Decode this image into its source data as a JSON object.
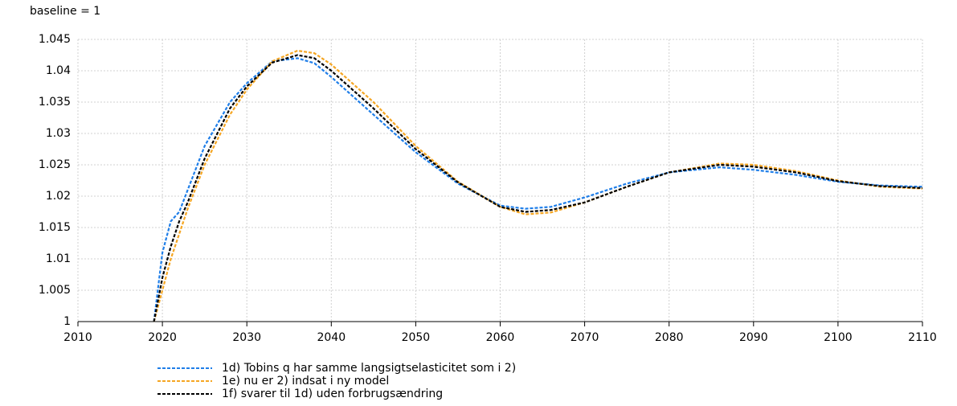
{
  "chart_data": {
    "type": "line",
    "subtitle": "baseline = 1",
    "x": [
      2019,
      2020,
      2021,
      2022,
      2023,
      2025,
      2028,
      2030,
      2033,
      2036,
      2038,
      2040,
      2045,
      2050,
      2055,
      2060,
      2063,
      2066,
      2070,
      2075,
      2080,
      2086,
      2090,
      2095,
      2100,
      2105,
      2110
    ],
    "series": [
      {
        "name": "1d) Tobins q har samme langsigtselasticitet som i 2)",
        "color": "#1f7ee8",
        "values": [
          1.0,
          1.011,
          1.016,
          1.0175,
          1.021,
          1.028,
          1.035,
          1.038,
          1.0415,
          1.042,
          1.0412,
          1.039,
          1.033,
          1.027,
          1.022,
          1.0185,
          1.018,
          1.0183,
          1.0198,
          1.022,
          1.0238,
          1.0246,
          1.0242,
          1.0234,
          1.0223,
          1.0217,
          1.0215
        ]
      },
      {
        "name": "1e) nu er 2) indsat i ny model",
        "color": "#f5a623",
        "values": [
          1.0,
          1.005,
          1.01,
          1.014,
          1.018,
          1.025,
          1.033,
          1.037,
          1.0415,
          1.0432,
          1.0428,
          1.041,
          1.035,
          1.028,
          1.0223,
          1.0183,
          1.0171,
          1.0174,
          1.019,
          1.0215,
          1.0238,
          1.0252,
          1.025,
          1.024,
          1.0225,
          1.0215,
          1.0212
        ]
      },
      {
        "name": "1f) svarer til 1d) uden forbrugsændring",
        "color": "#000000",
        "values": [
          1.0,
          1.007,
          1.012,
          1.016,
          1.019,
          1.026,
          1.034,
          1.0375,
          1.0413,
          1.0425,
          1.042,
          1.04,
          1.034,
          1.0275,
          1.0222,
          1.0183,
          1.0175,
          1.0178,
          1.019,
          1.0215,
          1.0238,
          1.025,
          1.0247,
          1.0238,
          1.0224,
          1.0216,
          1.0213
        ]
      }
    ],
    "xlim": [
      2010,
      2110
    ],
    "xticks": [
      2010,
      2020,
      2030,
      2040,
      2050,
      2060,
      2070,
      2080,
      2090,
      2100,
      2110
    ],
    "ylim": [
      1,
      1.045
    ],
    "yticks": [
      1,
      1.005,
      1.01,
      1.015,
      1.02,
      1.025,
      1.03,
      1.035,
      1.04,
      1.045
    ],
    "grid": true
  }
}
